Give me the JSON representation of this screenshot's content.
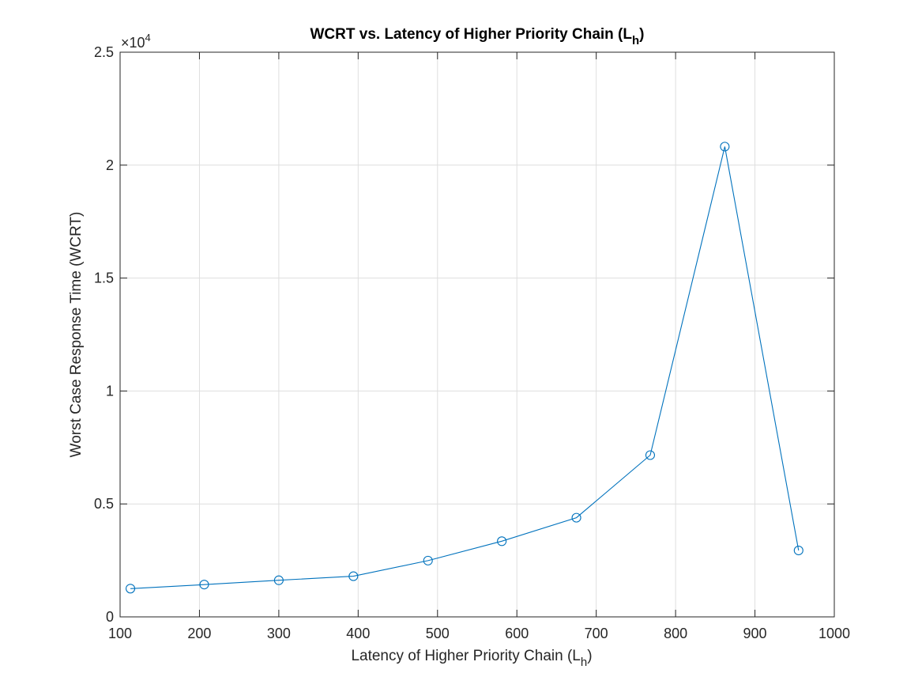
{
  "chart_data": {
    "type": "line",
    "title": "WCRT vs. Latency of Higher Priority Chain (L",
    "title_sub": "h",
    "title_end": ")",
    "xlabel": "Latency of Higher Priority Chain (L",
    "xlabel_sub": "h",
    "xlabel_end": ")",
    "ylabel": "Worst Case Response Time (WCRT)",
    "y_exponent_base": "×10",
    "y_exponent_power": "4",
    "xlim": [
      100,
      1000
    ],
    "ylim": [
      0,
      25000
    ],
    "x_ticks": [
      100,
      200,
      300,
      400,
      500,
      600,
      700,
      800,
      900,
      1000
    ],
    "x_tick_labels": [
      "100",
      "200",
      "300",
      "400",
      "500",
      "600",
      "700",
      "800",
      "900",
      "1000"
    ],
    "y_ticks": [
      0,
      5000,
      10000,
      15000,
      20000,
      25000
    ],
    "y_tick_labels": [
      "0",
      "0.5",
      "1",
      "1.5",
      "2",
      "2.5"
    ],
    "grid": true,
    "color": "#0072BD",
    "series": [
      {
        "x": [
          113,
          206,
          300,
          394,
          488,
          581,
          675,
          768,
          862,
          955
        ],
        "y": [
          1250,
          1430,
          1620,
          1800,
          2490,
          3350,
          4390,
          7160,
          20820,
          2940
        ],
        "marker": "circle"
      }
    ]
  }
}
